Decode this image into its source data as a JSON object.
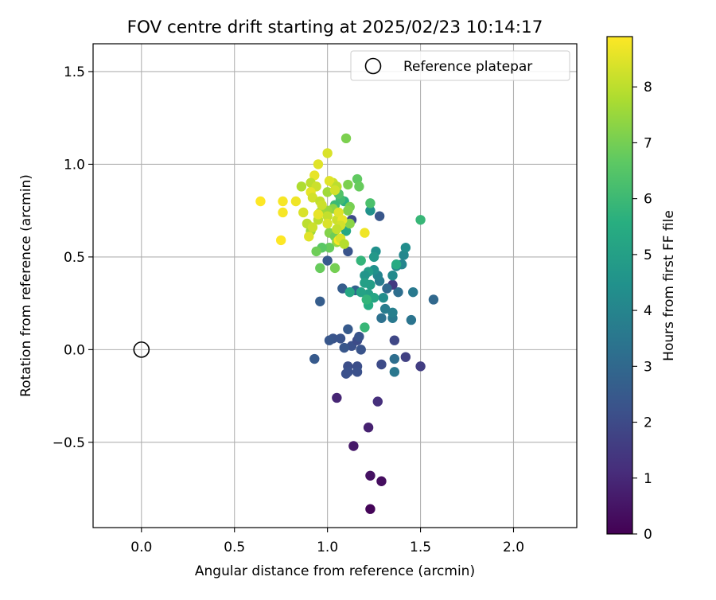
{
  "chart_data": {
    "type": "scatter",
    "title": "FOV centre drift starting at 2025/02/23 10:14:17",
    "xlabel": "Angular distance from reference (arcmin)",
    "ylabel": "Rotation from reference (arcmin)",
    "xlim": [
      -0.26,
      2.34
    ],
    "ylim": [
      -0.96,
      1.65
    ],
    "x_ticks": [
      0.0,
      0.5,
      1.0,
      1.5,
      2.0
    ],
    "x_tick_labels": [
      "0.0",
      "0.5",
      "1.0",
      "1.5",
      "2.0"
    ],
    "y_ticks": [
      -0.5,
      0.0,
      0.5,
      1.0,
      1.5
    ],
    "y_tick_labels": [
      "−0.5",
      "0.0",
      "0.5",
      "1.0",
      "1.5"
    ],
    "grid": true,
    "legend": {
      "placement": "top-right",
      "entries": [
        "Reference platepar"
      ]
    },
    "reference_point": {
      "label": "Reference platepar",
      "x": 0.0,
      "y": 0.0
    },
    "colorbar": {
      "label": "Hours from first FF file",
      "colormap": "viridis",
      "range": [
        0,
        8.9
      ],
      "ticks": [
        0,
        1,
        2,
        3,
        4,
        5,
        6,
        7,
        8
      ],
      "tick_labels": [
        "0",
        "1",
        "2",
        "3",
        "4",
        "5",
        "6",
        "7",
        "8"
      ]
    },
    "points": [
      {
        "x": 1.23,
        "y": -0.86,
        "h": 0.1
      },
      {
        "x": 1.29,
        "y": -0.71,
        "h": 0.3
      },
      {
        "x": 1.23,
        "y": -0.68,
        "h": 0.4
      },
      {
        "x": 1.14,
        "y": -0.52,
        "h": 0.6
      },
      {
        "x": 1.22,
        "y": -0.42,
        "h": 0.8
      },
      {
        "x": 1.05,
        "y": -0.26,
        "h": 0.9
      },
      {
        "x": 1.27,
        "y": -0.28,
        "h": 1.2
      },
      {
        "x": 1.5,
        "y": -0.09,
        "h": 1.6
      },
      {
        "x": 1.42,
        "y": -0.04,
        "h": 1.7
      },
      {
        "x": 1.36,
        "y": 0.05,
        "h": 1.9
      },
      {
        "x": 1.29,
        "y": -0.08,
        "h": 2.0
      },
      {
        "x": 1.16,
        "y": -0.09,
        "h": 2.1
      },
      {
        "x": 1.11,
        "y": -0.09,
        "h": 2.1
      },
      {
        "x": 1.11,
        "y": -0.12,
        "h": 2.2
      },
      {
        "x": 1.16,
        "y": -0.12,
        "h": 2.2
      },
      {
        "x": 1.1,
        "y": -0.13,
        "h": 2.2
      },
      {
        "x": 1.18,
        "y": 0.0,
        "h": 2.3
      },
      {
        "x": 1.13,
        "y": 0.02,
        "h": 2.2
      },
      {
        "x": 1.16,
        "y": 0.05,
        "h": 2.0
      },
      {
        "x": 1.03,
        "y": 0.06,
        "h": 2.3
      },
      {
        "x": 1.01,
        "y": 0.05,
        "h": 2.4
      },
      {
        "x": 1.07,
        "y": 0.06,
        "h": 2.3
      },
      {
        "x": 1.09,
        "y": 0.01,
        "h": 2.4
      },
      {
        "x": 1.17,
        "y": 0.07,
        "h": 2.3
      },
      {
        "x": 1.11,
        "y": 0.11,
        "h": 2.5
      },
      {
        "x": 0.93,
        "y": -0.05,
        "h": 2.5
      },
      {
        "x": 0.96,
        "y": 0.26,
        "h": 2.6
      },
      {
        "x": 1.08,
        "y": 0.33,
        "h": 2.6
      },
      {
        "x": 1.11,
        "y": 0.53,
        "h": 2.3
      },
      {
        "x": 1.13,
        "y": 0.7,
        "h": 2.0
      },
      {
        "x": 1.28,
        "y": 0.72,
        "h": 2.4
      },
      {
        "x": 1.0,
        "y": 0.48,
        "h": 2.5
      },
      {
        "x": 1.15,
        "y": 0.32,
        "h": 2.8
      },
      {
        "x": 1.36,
        "y": -0.05,
        "h": 3.2
      },
      {
        "x": 1.36,
        "y": -0.12,
        "h": 3.5
      },
      {
        "x": 1.29,
        "y": 0.17,
        "h": 3.3
      },
      {
        "x": 1.35,
        "y": 0.17,
        "h": 3.6
      },
      {
        "x": 1.45,
        "y": 0.16,
        "h": 3.4
      },
      {
        "x": 1.57,
        "y": 0.27,
        "h": 3.0
      },
      {
        "x": 1.46,
        "y": 0.31,
        "h": 3.6
      },
      {
        "x": 1.38,
        "y": 0.31,
        "h": 3.2
      },
      {
        "x": 1.35,
        "y": 0.2,
        "h": 3.8
      },
      {
        "x": 1.31,
        "y": 0.22,
        "h": 3.7
      },
      {
        "x": 1.35,
        "y": 0.35,
        "h": 1.5
      },
      {
        "x": 1.32,
        "y": 0.33,
        "h": 3.0
      },
      {
        "x": 1.3,
        "y": 0.28,
        "h": 4.3
      },
      {
        "x": 1.28,
        "y": 0.37,
        "h": 3.7
      },
      {
        "x": 1.27,
        "y": 0.4,
        "h": 4.0
      },
      {
        "x": 1.25,
        "y": 0.43,
        "h": 4.4
      },
      {
        "x": 1.35,
        "y": 0.4,
        "h": 4.2
      },
      {
        "x": 1.37,
        "y": 0.45,
        "h": 4.1
      },
      {
        "x": 1.4,
        "y": 0.46,
        "h": 4.0
      },
      {
        "x": 1.41,
        "y": 0.51,
        "h": 4.1
      },
      {
        "x": 1.42,
        "y": 0.55,
        "h": 4.3
      },
      {
        "x": 1.26,
        "y": 0.53,
        "h": 4.4
      },
      {
        "x": 1.25,
        "y": 0.5,
        "h": 4.7
      },
      {
        "x": 1.22,
        "y": 0.42,
        "h": 4.9
      },
      {
        "x": 1.2,
        "y": 0.4,
        "h": 4.6
      },
      {
        "x": 1.23,
        "y": 0.35,
        "h": 4.9
      },
      {
        "x": 1.2,
        "y": 0.36,
        "h": 5.0
      },
      {
        "x": 1.22,
        "y": 0.3,
        "h": 5.0
      },
      {
        "x": 1.25,
        "y": 0.28,
        "h": 5.2
      },
      {
        "x": 1.22,
        "y": 0.24,
        "h": 5.5
      },
      {
        "x": 1.18,
        "y": 0.31,
        "h": 5.1
      },
      {
        "x": 1.12,
        "y": 0.31,
        "h": 5.3
      },
      {
        "x": 1.2,
        "y": 0.12,
        "h": 5.9
      },
      {
        "x": 1.21,
        "y": 0.27,
        "h": 5.8
      },
      {
        "x": 1.37,
        "y": 0.46,
        "h": 5.4
      },
      {
        "x": 1.5,
        "y": 0.7,
        "h": 5.9
      },
      {
        "x": 1.23,
        "y": 0.75,
        "h": 4.5
      },
      {
        "x": 1.23,
        "y": 0.79,
        "h": 6.3
      },
      {
        "x": 1.18,
        "y": 0.48,
        "h": 5.8
      },
      {
        "x": 1.1,
        "y": 0.64,
        "h": 5.3
      },
      {
        "x": 1.09,
        "y": 0.8,
        "h": 5.6
      },
      {
        "x": 1.07,
        "y": 0.81,
        "h": 6.1
      },
      {
        "x": 1.04,
        "y": 0.78,
        "h": 6.0
      },
      {
        "x": 1.06,
        "y": 0.84,
        "h": 6.4
      },
      {
        "x": 1.16,
        "y": 0.92,
        "h": 6.7
      },
      {
        "x": 1.17,
        "y": 0.88,
        "h": 6.8
      },
      {
        "x": 1.11,
        "y": 0.89,
        "h": 7.1
      },
      {
        "x": 1.12,
        "y": 0.77,
        "h": 7.0
      },
      {
        "x": 1.11,
        "y": 0.75,
        "h": 7.2
      },
      {
        "x": 1.12,
        "y": 0.68,
        "h": 7.3
      },
      {
        "x": 1.03,
        "y": 0.76,
        "h": 7.3
      },
      {
        "x": 1.0,
        "y": 0.75,
        "h": 7.5
      },
      {
        "x": 0.96,
        "y": 0.74,
        "h": 7.6
      },
      {
        "x": 1.01,
        "y": 0.63,
        "h": 7.2
      },
      {
        "x": 1.04,
        "y": 0.61,
        "h": 6.9
      },
      {
        "x": 1.05,
        "y": 0.58,
        "h": 7.5
      },
      {
        "x": 1.01,
        "y": 0.55,
        "h": 6.8
      },
      {
        "x": 0.97,
        "y": 0.55,
        "h": 6.6
      },
      {
        "x": 0.94,
        "y": 0.53,
        "h": 6.9
      },
      {
        "x": 0.96,
        "y": 0.44,
        "h": 6.8
      },
      {
        "x": 1.04,
        "y": 0.44,
        "h": 7.0
      },
      {
        "x": 1.1,
        "y": 1.14,
        "h": 7.1
      },
      {
        "x": 1.0,
        "y": 1.06,
        "h": 8.4
      },
      {
        "x": 0.95,
        "y": 1.0,
        "h": 8.5
      },
      {
        "x": 0.93,
        "y": 0.94,
        "h": 8.6
      },
      {
        "x": 0.91,
        "y": 0.9,
        "h": 8.0
      },
      {
        "x": 0.94,
        "y": 0.88,
        "h": 8.2
      },
      {
        "x": 0.91,
        "y": 0.85,
        "h": 8.6
      },
      {
        "x": 0.86,
        "y": 0.88,
        "h": 7.8
      },
      {
        "x": 0.92,
        "y": 0.82,
        "h": 8.3
      },
      {
        "x": 0.96,
        "y": 0.8,
        "h": 8.1
      },
      {
        "x": 1.0,
        "y": 0.85,
        "h": 7.6
      },
      {
        "x": 1.03,
        "y": 0.9,
        "h": 8.2
      },
      {
        "x": 1.01,
        "y": 0.91,
        "h": 8.5
      },
      {
        "x": 1.05,
        "y": 0.88,
        "h": 8.0
      },
      {
        "x": 1.04,
        "y": 0.86,
        "h": 8.3
      },
      {
        "x": 0.97,
        "y": 0.78,
        "h": 8.2
      },
      {
        "x": 1.0,
        "y": 0.72,
        "h": 8.1
      },
      {
        "x": 0.95,
        "y": 0.7,
        "h": 8.0
      },
      {
        "x": 1.0,
        "y": 0.68,
        "h": 8.4
      },
      {
        "x": 1.05,
        "y": 0.7,
        "h": 8.2
      },
      {
        "x": 1.06,
        "y": 0.74,
        "h": 8.5
      },
      {
        "x": 1.08,
        "y": 0.7,
        "h": 8.6
      },
      {
        "x": 1.07,
        "y": 0.67,
        "h": 8.3
      },
      {
        "x": 1.05,
        "y": 0.65,
        "h": 8.1
      },
      {
        "x": 0.91,
        "y": 0.64,
        "h": 7.6
      },
      {
        "x": 0.89,
        "y": 0.68,
        "h": 8.0
      },
      {
        "x": 0.87,
        "y": 0.74,
        "h": 8.4
      },
      {
        "x": 0.92,
        "y": 0.66,
        "h": 8.2
      },
      {
        "x": 0.95,
        "y": 0.73,
        "h": 8.6
      },
      {
        "x": 0.9,
        "y": 0.61,
        "h": 8.5
      },
      {
        "x": 0.83,
        "y": 0.8,
        "h": 8.7
      },
      {
        "x": 0.76,
        "y": 0.8,
        "h": 8.8
      },
      {
        "x": 0.64,
        "y": 0.8,
        "h": 8.9
      },
      {
        "x": 0.76,
        "y": 0.74,
        "h": 8.8
      },
      {
        "x": 0.75,
        "y": 0.59,
        "h": 8.9
      },
      {
        "x": 1.2,
        "y": 0.63,
        "h": 8.7
      },
      {
        "x": 1.06,
        "y": 0.59,
        "h": 8.8
      },
      {
        "x": 1.07,
        "y": 0.6,
        "h": 8.4
      },
      {
        "x": 1.09,
        "y": 0.57,
        "h": 7.9
      }
    ]
  }
}
